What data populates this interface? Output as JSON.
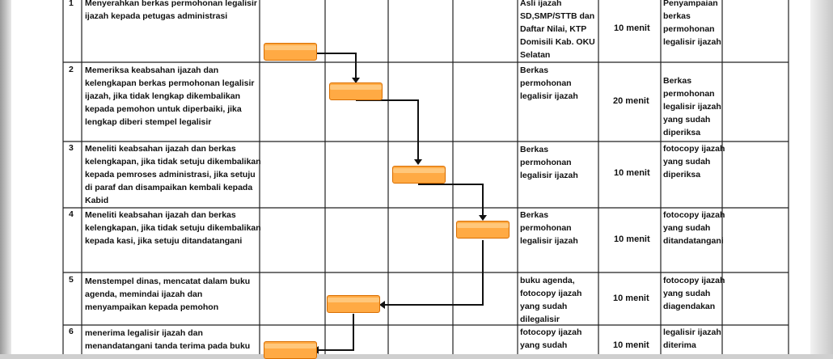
{
  "rows": [
    {
      "no": "1",
      "activity": [
        "Menyerahkan berkas permohonan legalisir",
        "ijazah kepada petugas administrasi"
      ],
      "requirements": [
        "Asli ijazah",
        "SD,SMP/STTB dan",
        "Daftar Nilai, KTP",
        "Domisili Kab. OKU",
        "Selatan"
      ],
      "time": "10 menit",
      "output": [
        "Penyampaian",
        "berkas",
        "permohonan",
        "legalisir ijazah"
      ]
    },
    {
      "no": "2",
      "activity": [
        "Memeriksa keabsahan ijazah dan",
        "kelengkapan berkas permohonan legalisir",
        "ijazah, jika tidak lengkap dikembalikan",
        "kepada pemohon untuk diperbaiki, jika",
        "lengkap diberi stempel legalisir"
      ],
      "requirements": [
        "Berkas",
        "permohonan",
        "legalisir ijazah"
      ],
      "time": "20 menit",
      "output": [
        "Berkas",
        "permohonan",
        "legalisir ijazah",
        "yang sudah",
        "diperiksa"
      ]
    },
    {
      "no": "3",
      "activity": [
        "Meneliti keabsahan ijazah dan berkas",
        "kelengkapan, jika tidak setuju dikembalikan",
        "kepada pemroses administrasi, jika setuju",
        "di paraf dan disampaikan kembali kepada",
        "Kabid"
      ],
      "requirements": [
        "Berkas",
        "permohonan",
        "legalisir ijazah"
      ],
      "time": "10 menit",
      "output": [
        "fotocopy ijazah",
        "yang sudah",
        "diperiksa"
      ]
    },
    {
      "no": "4",
      "activity": [
        "Meneliti keabsahan ijazah dan berkas",
        "kelengkapan, jika tidak setuju dikembalikan",
        "kepada kasi, jika setuju ditandatangani"
      ],
      "requirements": [
        "Berkas",
        "permohonan",
        "legalisir ijazah"
      ],
      "time": "10 menit",
      "output": [
        "fotocopy ijazah",
        "yang sudah",
        "ditandatangani"
      ]
    },
    {
      "no": "5",
      "activity": [
        "Menstempel dinas, mencatat dalam buku",
        "agenda, memindai ijazah dan",
        "menyampaikan kepada pemohon"
      ],
      "requirements": [
        "buku agenda,",
        "fotocopy ijazah",
        "yang sudah",
        "dilegalisir"
      ],
      "time": "10 menit",
      "output": [
        "fotocopy ijazah",
        "yang sudah",
        "diagendakan"
      ]
    },
    {
      "no": "6",
      "activity": [
        "menerima legalisir ijazah dan",
        "menandatangani tanda terima pada buku"
      ],
      "requirements": [
        "fotocopy ijazah",
        "yang sudah"
      ],
      "time": "10 menit",
      "output": [
        "legalisir ijazah",
        "diterima"
      ]
    }
  ],
  "colors": {
    "process_fill": "#ffaa44",
    "process_border": "#d96e00",
    "line": "#111111"
  }
}
